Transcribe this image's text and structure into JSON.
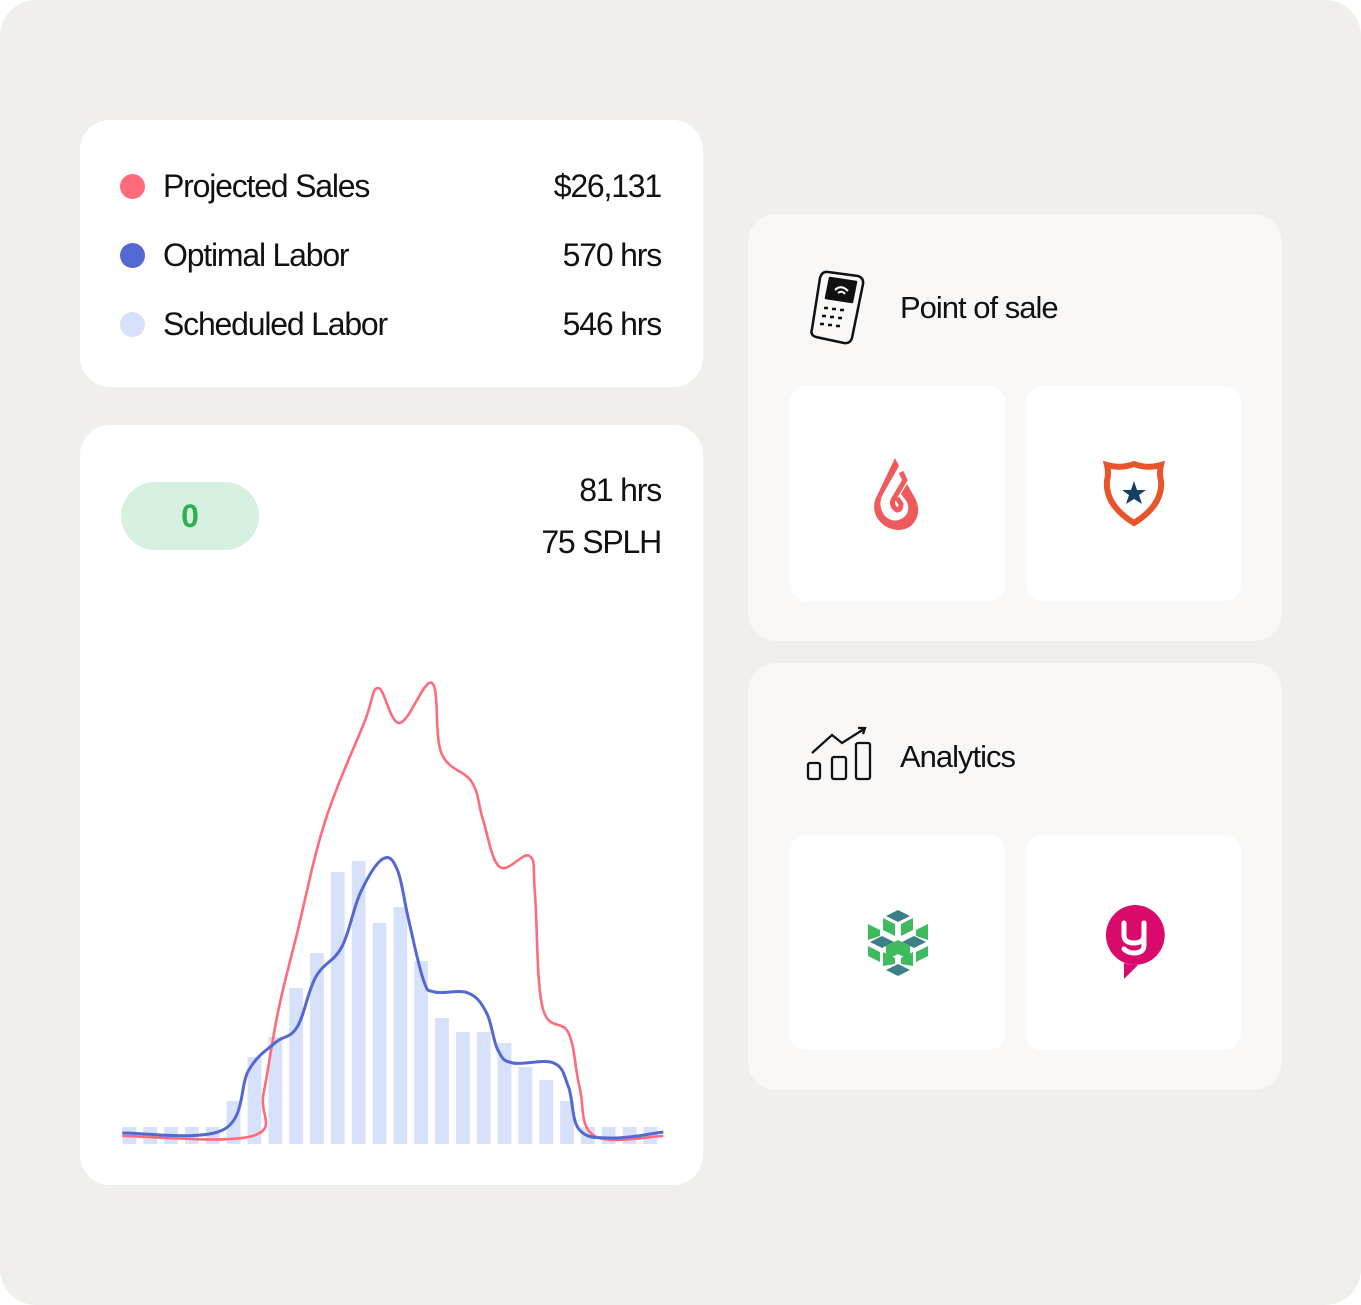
{
  "legend": [
    {
      "label": "Projected Sales",
      "value": "$26,131",
      "color": "#ff6b7a"
    },
    {
      "label": "Optimal Labor",
      "value": "570 hrs",
      "color": "#5468d4"
    },
    {
      "label": "Scheduled Labor",
      "value": "546 hrs",
      "color": "#d8e1fb"
    }
  ],
  "summary": {
    "badge": "0",
    "hours": "81 hrs",
    "splh": "75 SPLH"
  },
  "chart_data": {
    "type": "bar+line",
    "bars": {
      "name": "Scheduled Labor",
      "color": "#d8e1fb",
      "values": [
        17,
        17,
        17,
        17,
        17,
        43,
        87,
        107,
        156,
        191,
        272,
        283,
        221,
        237,
        183,
        126,
        112,
        112,
        101,
        77,
        64,
        43,
        17,
        17,
        17,
        17
      ]
    },
    "series": [
      {
        "name": "Projected Sales",
        "color": "#ff6b7a",
        "points": [
          [
            -0.34,
            8
          ],
          [
            5.9,
            8
          ],
          [
            6.44,
            51
          ],
          [
            7.15,
            134
          ],
          [
            8.05,
            211
          ],
          [
            9.38,
            322
          ],
          [
            11.26,
            421
          ],
          [
            11.94,
            456
          ],
          [
            12.97,
            421
          ],
          [
            14.52,
            461
          ],
          [
            14.97,
            391
          ],
          [
            16.43,
            362
          ],
          [
            16.97,
            324
          ],
          [
            17.77,
            277
          ],
          [
            19.2,
            288
          ],
          [
            19.46,
            251
          ],
          [
            19.82,
            137
          ],
          [
            21.07,
            111
          ],
          [
            21.6,
            57
          ],
          [
            22.32,
            8
          ],
          [
            25.62,
            8
          ]
        ]
      },
      {
        "name": "Optimal Labor",
        "color": "#5468d4",
        "points": [
          [
            -0.34,
            11
          ],
          [
            4.48,
            14
          ],
          [
            5.73,
            74
          ],
          [
            6.98,
            101
          ],
          [
            8.05,
            117
          ],
          [
            8.94,
            167
          ],
          [
            10.19,
            197
          ],
          [
            11.08,
            251
          ],
          [
            12.15,
            285
          ],
          [
            12.86,
            274
          ],
          [
            13.4,
            224
          ],
          [
            14.11,
            164
          ],
          [
            14.65,
            152
          ],
          [
            16.25,
            151
          ],
          [
            17.14,
            131
          ],
          [
            17.68,
            94
          ],
          [
            18.4,
            81
          ],
          [
            20.36,
            81
          ],
          [
            21.07,
            57
          ],
          [
            21.6,
            14
          ],
          [
            23.21,
            6
          ],
          [
            25.62,
            12
          ]
        ]
      }
    ],
    "xlabel": "",
    "ylabel": "",
    "grid": false
  },
  "panels": [
    {
      "title": "Point of sale",
      "icon": "card-terminal-icon",
      "tiles": [
        "lightspeed-logo",
        "shield-star-logo"
      ]
    },
    {
      "title": "Analytics",
      "icon": "bar-chart-trend-icon",
      "tiles": [
        "hexagon-cubes-logo",
        "pink-y-chat-logo"
      ]
    }
  ]
}
